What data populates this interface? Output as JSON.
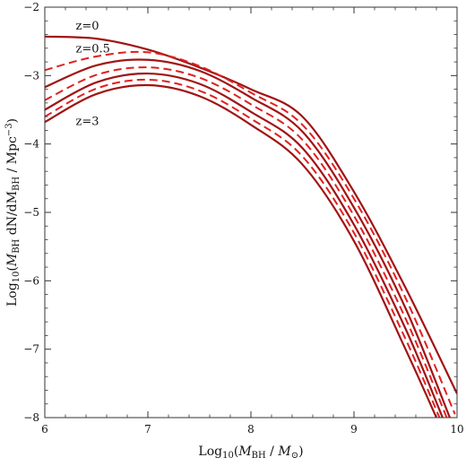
{
  "chart_data": {
    "type": "line",
    "xlabel": "Log10(MBH / M⊙)",
    "ylabel": "Log10(MBH dN/dMBH / Mpc−3)",
    "xlim": [
      6,
      10
    ],
    "ylim": [
      -8,
      -2
    ],
    "xticks": [
      "6",
      "7",
      "8",
      "9",
      "10"
    ],
    "yticks": [
      "-8",
      "-7",
      "-6",
      "-5",
      "-4",
      "-3",
      "-2"
    ],
    "grid": false,
    "colors": {
      "line": "#a01414",
      "dashed": "#e02020",
      "frame": "#333333"
    },
    "annotations": [
      {
        "text": "z=0",
        "x": 6.3,
        "y": -2.33
      },
      {
        "text": "z=0.5",
        "x": 6.3,
        "y": -2.66
      },
      {
        "text": "z=3",
        "x": 6.3,
        "y": -3.72
      }
    ],
    "series": [
      {
        "style": "solid",
        "x": [
          6.0,
          6.5,
          7.0,
          7.5,
          8.0,
          8.5,
          9.0,
          9.5,
          10.0
        ],
        "y": [
          -2.43,
          -2.46,
          -2.62,
          -2.88,
          -3.2,
          -3.6,
          -4.7,
          -6.1,
          -7.65
        ]
      },
      {
        "style": "dashed",
        "x": [
          6.0,
          6.5,
          7.0,
          7.5,
          8.0,
          8.5,
          9.0,
          9.5,
          9.98
        ],
        "y": [
          -2.92,
          -2.72,
          -2.66,
          -2.86,
          -3.25,
          -3.72,
          -4.8,
          -6.25,
          -7.95
        ]
      },
      {
        "style": "solid",
        "x": [
          6.0,
          6.5,
          7.0,
          7.5,
          8.0,
          8.5,
          9.0,
          9.5,
          9.93
        ],
        "y": [
          -3.17,
          -2.85,
          -2.77,
          -2.93,
          -3.32,
          -3.82,
          -4.93,
          -6.4,
          -8.0
        ]
      },
      {
        "style": "dashed",
        "x": [
          6.0,
          6.5,
          7.0,
          7.5,
          8.0,
          8.5,
          9.0,
          9.5,
          9.9
        ],
        "y": [
          -3.36,
          -2.99,
          -2.88,
          -3.03,
          -3.42,
          -3.94,
          -5.05,
          -6.55,
          -8.0
        ]
      },
      {
        "style": "solid",
        "x": [
          6.0,
          6.5,
          7.0,
          7.5,
          8.0,
          8.5,
          9.0,
          9.5,
          9.86
        ],
        "y": [
          -3.5,
          -3.1,
          -2.97,
          -3.12,
          -3.53,
          -4.06,
          -5.18,
          -6.7,
          -8.0
        ]
      },
      {
        "style": "dashed",
        "x": [
          6.0,
          6.5,
          7.0,
          7.5,
          8.0,
          8.5,
          9.0,
          9.5,
          9.83
        ],
        "y": [
          -3.6,
          -3.19,
          -3.06,
          -3.22,
          -3.63,
          -4.18,
          -5.3,
          -6.85,
          -8.0
        ]
      },
      {
        "style": "solid",
        "x": [
          6.0,
          6.5,
          7.0,
          7.5,
          8.0,
          8.5,
          9.0,
          9.5,
          9.8
        ],
        "y": [
          -3.68,
          -3.27,
          -3.14,
          -3.3,
          -3.72,
          -4.3,
          -5.42,
          -7.0,
          -8.0
        ]
      }
    ]
  }
}
